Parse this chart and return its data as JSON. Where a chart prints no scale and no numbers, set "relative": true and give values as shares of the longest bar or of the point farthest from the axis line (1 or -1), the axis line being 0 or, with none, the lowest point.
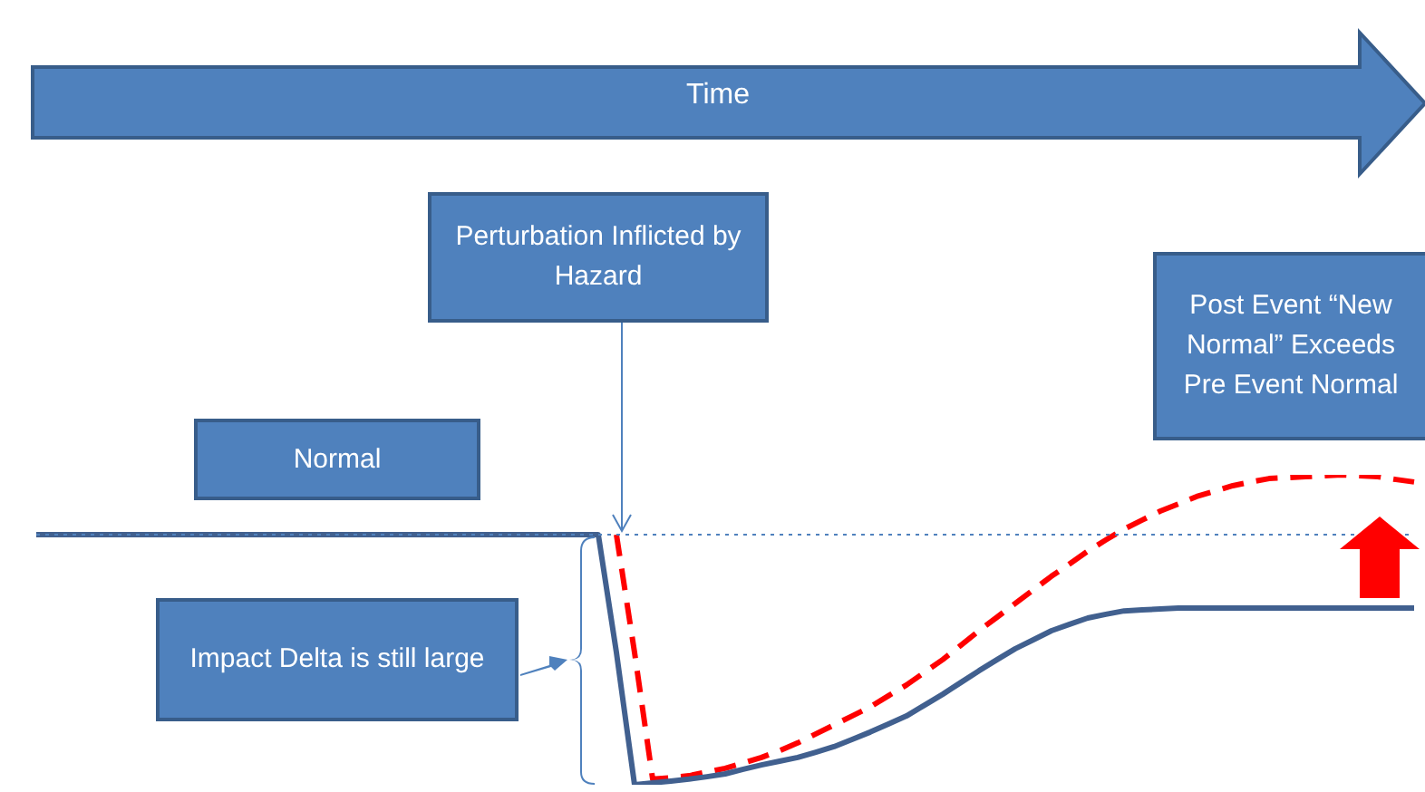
{
  "chart_data": {
    "type": "line",
    "relative": true,
    "categories": [
      null,
      null,
      null,
      null,
      null,
      null,
      null,
      null,
      null,
      null,
      null,
      null,
      null,
      null,
      null,
      null,
      null,
      null,
      null,
      null,
      null,
      null,
      null,
      null,
      null,
      null,
      null,
      null,
      null,
      null,
      null,
      null,
      null,
      null,
      null,
      null,
      null,
      null,
      null,
      null,
      null,
      null,
      null,
      null,
      null,
      null,
      null,
      null,
      null,
      null,
      null,
      null,
      null,
      null,
      null,
      null,
      null,
      null,
      null,
      null,
      null,
      null,
      null,
      null,
      null,
      null,
      null,
      null,
      null,
      null,
      null,
      null,
      null,
      null,
      null,
      null,
      null
    ],
    "series": [
      {
        "color": "#41608f",
        "line_style": "solid",
        "values": [
          0.807,
          0.807,
          0.807,
          0.807,
          0.807,
          0.807,
          0.807,
          0.807,
          0.807,
          0.807,
          0.807,
          0.807,
          0.807,
          0.807,
          0.807,
          0.807,
          0.807,
          0.807,
          0.807,
          0.807,
          0.807,
          0.807,
          0.807,
          0.807,
          0.807,
          0.807,
          0.807,
          0.807,
          0.807,
          0.807,
          0.807,
          0.807,
          0.427,
          0,
          0.006,
          0.012,
          0.018,
          0.026,
          0.035,
          0.05,
          0.064,
          0.076,
          0.088,
          0.105,
          0.123,
          0.146,
          0.17,
          0.196,
          0.222,
          0.257,
          0.292,
          0.33,
          0.368,
          0.404,
          0.439,
          0.468,
          0.497,
          0.518,
          0.538,
          0.55,
          0.561,
          0.564,
          0.567,
          0.57,
          0.57,
          0.57,
          0.57,
          0.57,
          0.57,
          0.57,
          0.57,
          0.57,
          0.57,
          0.57,
          0.57,
          0.57,
          0.57
        ]
      },
      {
        "color": "#ff0000",
        "line_style": "dashed",
        "values": [
          null,
          null,
          null,
          null,
          null,
          null,
          null,
          null,
          null,
          null,
          null,
          null,
          null,
          null,
          null,
          null,
          null,
          null,
          null,
          null,
          null,
          null,
          null,
          null,
          null,
          null,
          null,
          null,
          null,
          null,
          null,
          null,
          0.807,
          0.427,
          0.018,
          0.023,
          0.029,
          0.041,
          0.053,
          0.07,
          0.088,
          0.11,
          0.135,
          0.164,
          0.193,
          0.222,
          0.251,
          0.287,
          0.322,
          0.363,
          0.404,
          0.45,
          0.497,
          0.541,
          0.585,
          0.629,
          0.673,
          0.713,
          0.754,
          0.79,
          0.825,
          0.854,
          0.883,
          0.906,
          0.93,
          0.947,
          0.965,
          0.977,
          0.988,
          0.991,
          0.994,
          0.997,
          1,
          0.997,
          0.994,
          0.985,
          0.977
        ]
      }
    ],
    "ref_lines": [
      {
        "axis": "y",
        "value": 0.807,
        "color": "#4f81bd",
        "line_style": "dotted"
      }
    ],
    "annotations": [
      "Time",
      "Perturbation Inflicted by Hazard",
      "Normal",
      "Post Event “New Normal” Exceeds Pre Event Normal",
      "Impact Delta is still large"
    ],
    "grid": false,
    "legend": false
  }
}
